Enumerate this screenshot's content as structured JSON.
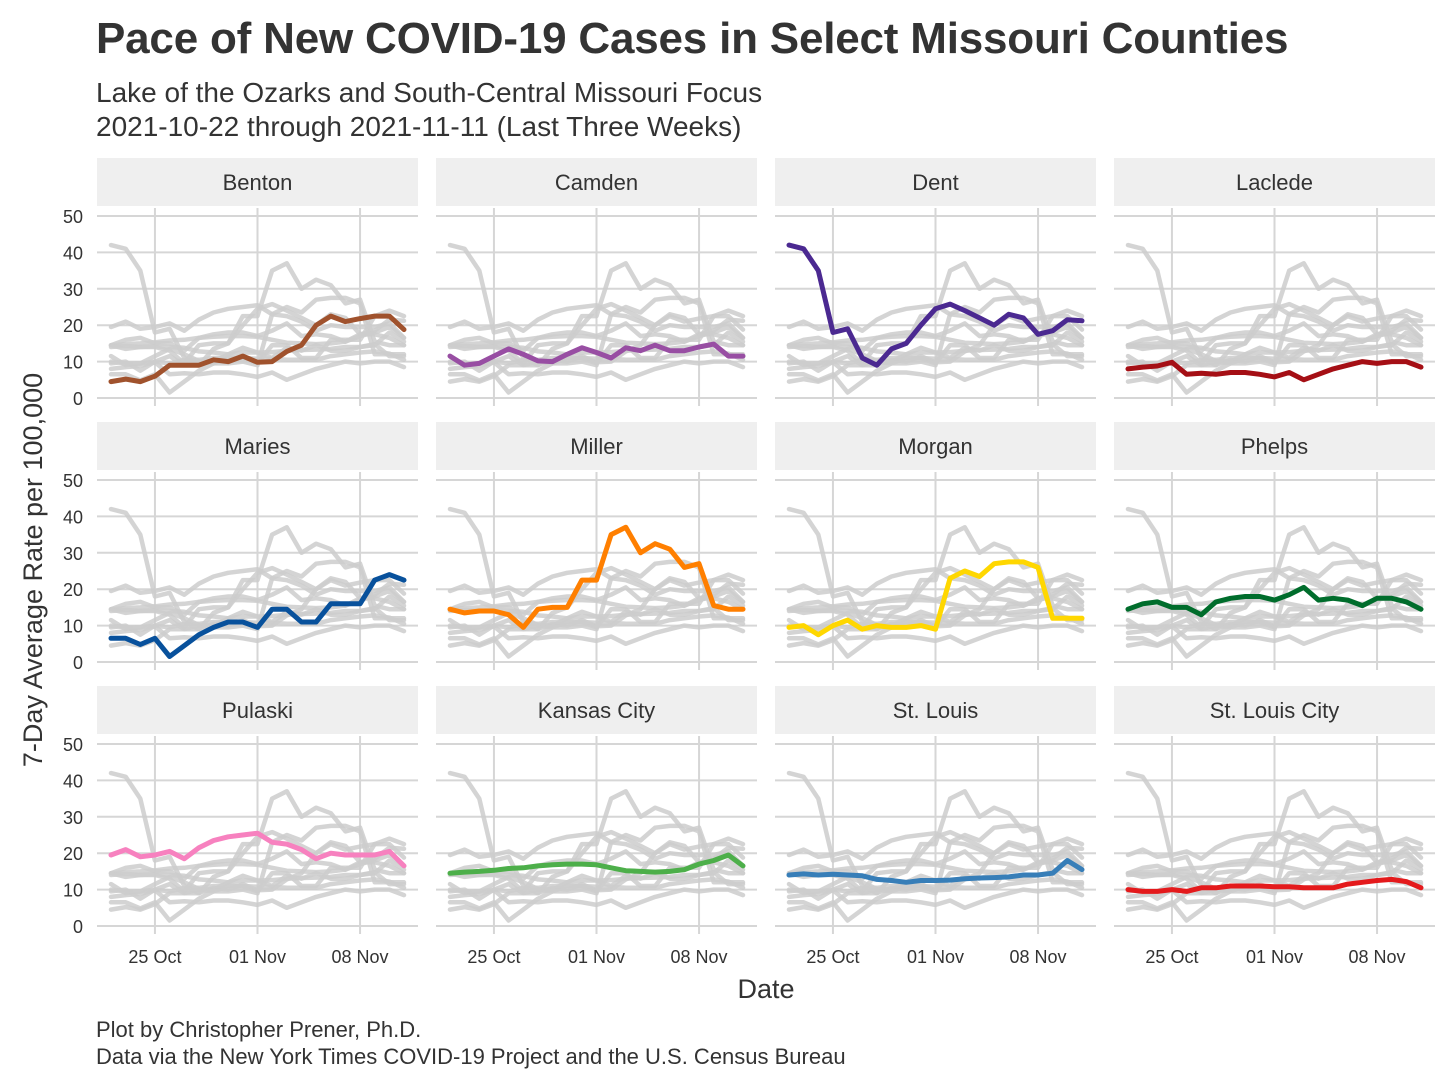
{
  "chart_data": {
    "type": "line",
    "title": "Pace of New COVID-19 Cases in Select Missouri Counties",
    "subtitle": [
      "Lake of the Ozarks and South-Central Missouri Focus",
      "2021-10-22 through 2021-11-11 (Last Three Weeks)"
    ],
    "xlabel": "Date",
    "ylabel": "7-Day Average Rate per 100,000",
    "x": [
      "2021-10-22",
      "2021-10-23",
      "2021-10-24",
      "2021-10-25",
      "2021-10-26",
      "2021-10-27",
      "2021-10-28",
      "2021-10-29",
      "2021-10-30",
      "2021-10-31",
      "2021-11-01",
      "2021-11-02",
      "2021-11-03",
      "2021-11-04",
      "2021-11-05",
      "2021-11-06",
      "2021-11-07",
      "2021-11-08",
      "2021-11-09",
      "2021-11-10",
      "2021-11-11"
    ],
    "xticks": [
      {
        "date": "2021-10-25",
        "label": "25 Oct"
      },
      {
        "date": "2021-11-01",
        "label": "01 Nov"
      },
      {
        "date": "2021-11-08",
        "label": "08 Nov"
      }
    ],
    "ylim": [
      0,
      50
    ],
    "yticks": [
      0,
      10,
      20,
      30,
      40,
      50
    ],
    "background_series_color": "#cccccc",
    "series": [
      {
        "name": "Benton",
        "color": "#a0522d",
        "values": [
          4.5,
          5.2,
          4.5,
          6.0,
          9.0,
          9.0,
          9.0,
          10.5,
          10.0,
          11.5,
          9.8,
          10.0,
          12.8,
          14.5,
          20.0,
          22.5,
          21.0,
          21.8,
          22.5,
          22.5,
          18.8
        ]
      },
      {
        "name": "Camden",
        "color": "#984ea3",
        "values": [
          11.5,
          9.0,
          9.5,
          11.5,
          13.5,
          12.0,
          10.2,
          10.0,
          12.0,
          13.8,
          12.5,
          11.0,
          13.8,
          13.0,
          14.5,
          13.0,
          13.0,
          14.0,
          14.8,
          11.5,
          11.5
        ]
      },
      {
        "name": "Dent",
        "color": "#4b2991",
        "values": [
          42.0,
          41.0,
          35.0,
          18.0,
          19.0,
          11.0,
          9.0,
          13.5,
          15.0,
          20.0,
          24.5,
          25.8,
          24.0,
          22.0,
          20.0,
          23.0,
          22.0,
          17.5,
          18.5,
          21.5,
          21.2
        ]
      },
      {
        "name": "Laclede",
        "color": "#a50f15",
        "values": [
          8.0,
          8.5,
          8.8,
          9.8,
          6.5,
          6.8,
          6.5,
          7.0,
          7.0,
          6.5,
          5.8,
          7.0,
          5.0,
          6.5,
          8.0,
          9.0,
          10.0,
          9.5,
          10.0,
          10.0,
          8.5
        ]
      },
      {
        "name": "Maries",
        "color": "#08519c",
        "values": [
          6.5,
          6.5,
          4.8,
          6.5,
          1.5,
          4.5,
          7.5,
          9.5,
          11.0,
          11.0,
          9.5,
          14.5,
          14.5,
          11.0,
          11.0,
          16.0,
          16.0,
          16.0,
          22.5,
          24.0,
          22.5
        ]
      },
      {
        "name": "Miller",
        "color": "#ff7f00",
        "values": [
          14.5,
          13.5,
          14.0,
          14.0,
          13.0,
          9.5,
          14.5,
          15.0,
          15.0,
          22.5,
          22.5,
          35.0,
          37.0,
          30.0,
          32.5,
          31.0,
          26.0,
          27.0,
          15.5,
          14.5,
          14.5
        ]
      },
      {
        "name": "Morgan",
        "color": "#ffd700",
        "values": [
          9.5,
          10.0,
          7.5,
          10.0,
          11.5,
          9.0,
          10.0,
          9.5,
          9.5,
          10.0,
          9.0,
          23.0,
          25.0,
          23.5,
          27.0,
          27.5,
          27.5,
          26.0,
          12.0,
          12.0,
          12.0
        ]
      },
      {
        "name": "Phelps",
        "color": "#006d2c",
        "values": [
          14.5,
          16.0,
          16.5,
          15.0,
          15.0,
          13.0,
          16.5,
          17.5,
          18.0,
          18.0,
          17.0,
          18.5,
          20.5,
          17.0,
          17.5,
          17.0,
          15.5,
          17.5,
          17.5,
          16.5,
          14.5
        ]
      },
      {
        "name": "Pulaski",
        "color": "#f781bf",
        "values": [
          19.5,
          21.0,
          19.0,
          19.5,
          20.5,
          18.5,
          21.5,
          23.5,
          24.5,
          25.0,
          25.5,
          23.0,
          22.5,
          21.0,
          18.5,
          20.0,
          19.5,
          19.5,
          19.5,
          20.5,
          16.5
        ]
      },
      {
        "name": "Kansas City",
        "color": "#4daf4a",
        "values": [
          14.5,
          14.8,
          15.0,
          15.3,
          15.8,
          16.0,
          16.5,
          16.8,
          17.0,
          17.0,
          16.8,
          16.0,
          15.2,
          15.0,
          14.8,
          15.0,
          15.5,
          17.0,
          18.0,
          19.5,
          16.5
        ]
      },
      {
        "name": "St. Louis",
        "color": "#377eb8",
        "values": [
          14.0,
          14.3,
          14.0,
          14.2,
          14.0,
          13.8,
          12.8,
          12.5,
          12.0,
          12.5,
          12.5,
          12.6,
          13.0,
          13.2,
          13.3,
          13.5,
          14.0,
          14.0,
          14.5,
          18.0,
          15.5
        ]
      },
      {
        "name": "St. Louis City",
        "color": "#e41a1c",
        "values": [
          10.0,
          9.5,
          9.5,
          10.0,
          9.5,
          10.5,
          10.5,
          11.0,
          11.0,
          11.0,
          10.8,
          10.8,
          10.5,
          10.5,
          10.5,
          11.5,
          12.0,
          12.5,
          12.8,
          12.2,
          10.5
        ]
      }
    ]
  },
  "caption": [
    "Plot by Christopher Prener, Ph.D.",
    "Data via the New York Times COVID-19 Project and the U.S. Census Bureau"
  ]
}
